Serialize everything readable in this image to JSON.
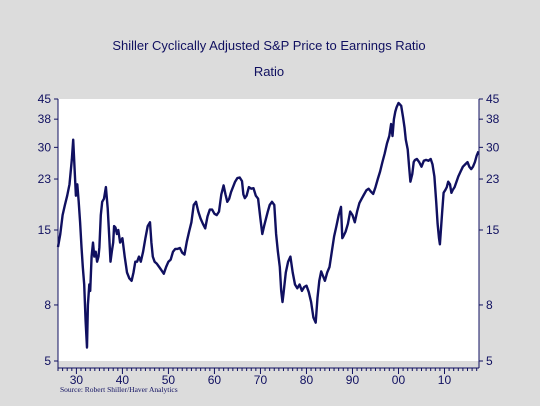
{
  "chart_data": {
    "type": "line",
    "title": "Shiller Cyclically Adjusted S&P Price to Earnings Ratio",
    "subtitle": "Ratio",
    "source": "Source: Robert Shiller/Haver Analytics",
    "y_scale": "log",
    "ylim": [
      5,
      45
    ],
    "xlim": [
      1926,
      2017.5
    ],
    "y_ticks": [
      5,
      8,
      15,
      23,
      30,
      38,
      45
    ],
    "x_ticks": [
      1930,
      1940,
      1950,
      1960,
      1970,
      1980,
      1990,
      2000,
      2010
    ],
    "x_tick_labels": [
      "30",
      "40",
      "50",
      "60",
      "70",
      "80",
      "90",
      "00",
      "10"
    ],
    "grid": false,
    "legend": "none",
    "line_color": "#101060",
    "series": [
      {
        "x": [
          1926.0,
          1926.5,
          1927.0,
          1927.5,
          1928.0,
          1928.5,
          1929.0,
          1929.3,
          1929.6,
          1929.9,
          1930.2,
          1930.5,
          1930.8,
          1931.1,
          1931.4,
          1931.7,
          1932.0,
          1932.3,
          1932.5,
          1932.8,
          1933.0,
          1933.3,
          1933.6,
          1933.9,
          1934.2,
          1934.5,
          1934.8,
          1935.0,
          1935.3,
          1935.6,
          1936.0,
          1936.4,
          1936.8,
          1937.1,
          1937.4,
          1937.7,
          1938.0,
          1938.2,
          1938.5,
          1938.8,
          1939.1,
          1939.5,
          1940.0,
          1940.5,
          1941.0,
          1941.5,
          1942.0,
          1942.4,
          1942.8,
          1943.2,
          1943.6,
          1944.0,
          1944.5,
          1945.0,
          1945.5,
          1946.0,
          1946.3,
          1946.6,
          1947.0,
          1947.5,
          1948.0,
          1948.5,
          1949.0,
          1949.5,
          1950.0,
          1950.5,
          1951.0,
          1951.5,
          1952.0,
          1952.5,
          1953.0,
          1953.5,
          1954.0,
          1954.5,
          1955.0,
          1955.5,
          1956.0,
          1956.5,
          1957.0,
          1957.5,
          1958.0,
          1958.5,
          1959.0,
          1959.5,
          1960.0,
          1960.5,
          1961.0,
          1961.5,
          1962.0,
          1962.4,
          1962.8,
          1963.2,
          1963.6,
          1964.0,
          1964.5,
          1965.0,
          1965.5,
          1966.0,
          1966.3,
          1966.6,
          1967.0,
          1967.5,
          1968.0,
          1968.5,
          1969.0,
          1969.5,
          1970.0,
          1970.4,
          1970.8,
          1971.2,
          1971.6,
          1972.0,
          1972.5,
          1973.0,
          1973.4,
          1973.8,
          1974.2,
          1974.5,
          1974.8,
          1975.0,
          1975.5,
          1976.0,
          1976.5,
          1977.0,
          1977.5,
          1978.0,
          1978.5,
          1979.0,
          1979.5,
          1980.0,
          1980.5,
          1981.0,
          1981.5,
          1982.0,
          1982.4,
          1982.8,
          1983.2,
          1983.6,
          1984.0,
          1984.5,
          1985.0,
          1985.5,
          1986.0,
          1986.5,
          1987.0,
          1987.5,
          1987.8,
          1988.0,
          1988.5,
          1989.0,
          1989.5,
          1990.0,
          1990.5,
          1991.0,
          1991.5,
          1992.0,
          1992.5,
          1993.0,
          1993.5,
          1994.0,
          1994.5,
          1995.0,
          1995.5,
          1996.0,
          1996.5,
          1997.0,
          1997.5,
          1998.0,
          1998.4,
          1998.7,
          1999.0,
          1999.3,
          1999.6,
          2000.0,
          2000.3,
          2000.6,
          2001.0,
          2001.3,
          2001.6,
          2002.0,
          2002.3,
          2002.6,
          2003.0,
          2003.3,
          2003.6,
          2004.0,
          2004.5,
          2005.0,
          2005.5,
          2006.0,
          2006.5,
          2007.0,
          2007.4,
          2007.8,
          2008.2,
          2008.5,
          2008.8,
          2009.0,
          2009.2,
          2009.5,
          2009.8,
          2010.2,
          2010.5,
          2010.8,
          2011.2,
          2011.5,
          2011.8,
          2012.2,
          2012.6,
          2013.0,
          2013.5,
          2014.0,
          2014.5,
          2015.0,
          2015.4,
          2015.8,
          2016.2,
          2016.6,
          2017.0,
          2017.4
        ],
        "y": [
          13,
          14.5,
          17,
          18.5,
          20,
          22,
          27,
          32,
          25,
          20,
          22,
          19,
          16,
          13,
          11,
          9.5,
          7.0,
          5.6,
          8.0,
          9.5,
          9.0,
          12,
          13.5,
          12,
          12.5,
          11.5,
          12,
          13,
          17,
          19,
          19.5,
          21.5,
          18,
          14.5,
          11.5,
          12.5,
          13.5,
          15.5,
          15.3,
          14.5,
          15,
          13.5,
          14,
          12,
          10.5,
          10,
          9.8,
          10.5,
          11.5,
          11.5,
          12,
          11.5,
          12.5,
          14,
          15.5,
          16,
          13.5,
          12,
          11.5,
          11.3,
          11.0,
          10.7,
          10.4,
          11,
          11.5,
          11.7,
          12.5,
          12.8,
          12.8,
          12.9,
          12.4,
          12.2,
          13.6,
          14.8,
          16.0,
          18.5,
          19,
          17.5,
          16.5,
          15.8,
          15.2,
          16.8,
          17.8,
          17.8,
          17.2,
          17.0,
          17.5,
          20.2,
          21.8,
          20.2,
          19.0,
          19.5,
          20.6,
          21.4,
          22.5,
          23.2,
          23.3,
          22.6,
          20.2,
          19.6,
          20.0,
          21.5,
          21.2,
          21.3,
          20.0,
          19.5,
          16.5,
          14.5,
          15.5,
          16.5,
          17.5,
          18.5,
          19,
          18.5,
          14.5,
          12.5,
          11.0,
          9.0,
          8.2,
          8.8,
          10.5,
          11.5,
          12,
          10.5,
          9.5,
          9.2,
          9.5,
          9.0,
          9.3,
          9.4,
          8.9,
          8.2,
          7.2,
          6.9,
          8.5,
          9.8,
          10.6,
          10.2,
          9.8,
          10.5,
          11.0,
          12.5,
          14.2,
          15.5,
          17.0,
          18.2,
          14.0,
          14.2,
          14.8,
          15.8,
          17.5,
          17.0,
          16.0,
          17.5,
          18.8,
          19.5,
          20.2,
          20.9,
          21.2,
          20.7,
          20.3,
          21.5,
          23.0,
          24.5,
          26.5,
          28.5,
          31.0,
          33.0,
          36.5,
          33.0,
          38.0,
          40.5,
          42.0,
          43.5,
          43.0,
          42.5,
          38.5,
          35.5,
          32.0,
          29.5,
          25.5,
          22.5,
          24.0,
          26.5,
          27.0,
          27.2,
          26.5,
          25.5,
          26.8,
          27.0,
          26.8,
          27.2,
          26.0,
          23.5,
          19.0,
          15.8,
          14.0,
          13.3,
          14.8,
          17.5,
          20.5,
          21.0,
          21.5,
          22.5,
          22.0,
          20.5,
          21.0,
          21.5,
          22.5,
          23.5,
          24.5,
          25.5,
          26.0,
          26.5,
          25.5,
          25.0,
          25.5,
          26.5,
          28.0,
          29.0
        ]
      }
    ]
  }
}
